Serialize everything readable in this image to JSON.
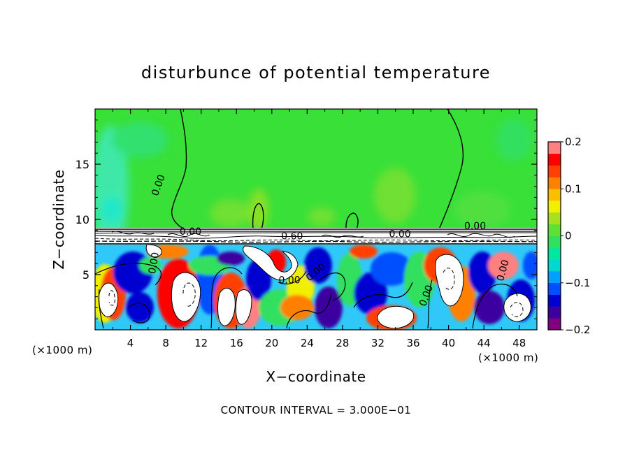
{
  "chart_data": {
    "type": "heatmap",
    "title": "disturbunce of potential temperature",
    "xlabel": "X−coordinate",
    "ylabel": "Z−coordinate",
    "x_unit_left": "(×1000 m)",
    "x_unit_right": "(×1000 m)",
    "footer": "CONTOUR INTERVAL =  3.000E−01",
    "xlim": [
      0,
      50
    ],
    "ylim": [
      0,
      20
    ],
    "x_ticks": [
      4,
      8,
      12,
      16,
      20,
      24,
      28,
      32,
      36,
      40,
      44,
      48
    ],
    "x_tick_labels": [
      "4",
      "8",
      "12",
      "16",
      "20",
      "24",
      "28",
      "32",
      "36",
      "40",
      "44",
      "48"
    ],
    "y_ticks": [
      5,
      10,
      15
    ],
    "y_tick_labels": [
      "5",
      "10",
      "15"
    ],
    "colorbar": {
      "min": -0.2,
      "max": 0.2,
      "ticks": [
        0.2,
        0.1,
        0,
        -0.1,
        -0.2
      ],
      "tick_labels": [
        "0.2",
        "0.1",
        "0",
        "−0.1",
        "−0.2"
      ],
      "colors": [
        "#800080",
        "#3c00a0",
        "#0000d0",
        "#0050ff",
        "#00a0ff",
        "#00d8d0",
        "#00e8a0",
        "#30e060",
        "#60e030",
        "#a8e020",
        "#f0f000",
        "#f8c000",
        "#ff8000",
        "#ff4000",
        "#ff0000",
        "#ff8080"
      ]
    },
    "contour_labels": [
      {
        "text": "0.00",
        "x": 7.5,
        "y": 13.0,
        "rotate": -70
      },
      {
        "text": "0.00",
        "x": 10.8,
        "y": 8.6,
        "rotate": 0
      },
      {
        "text": "0.00",
        "x": 7.0,
        "y": 6.0,
        "rotate": -80
      },
      {
        "text": "0.60",
        "x": 22.3,
        "y": 8.2,
        "rotate": 0
      },
      {
        "text": "0.00",
        "x": 22.0,
        "y": 4.2,
        "rotate": 0
      },
      {
        "text": "0.00",
        "x": 25.2,
        "y": 5.0,
        "rotate": -40
      },
      {
        "text": "0.00",
        "x": 37.8,
        "y": 3.0,
        "rotate": -70
      },
      {
        "text": "0.00",
        "x": 43.0,
        "y": 9.1,
        "rotate": 0
      },
      {
        "text": "0.00",
        "x": 46.5,
        "y": 5.3,
        "rotate": -75
      },
      {
        "text": "0.00",
        "x": 34.5,
        "y": 8.4,
        "rotate": 0
      }
    ]
  }
}
